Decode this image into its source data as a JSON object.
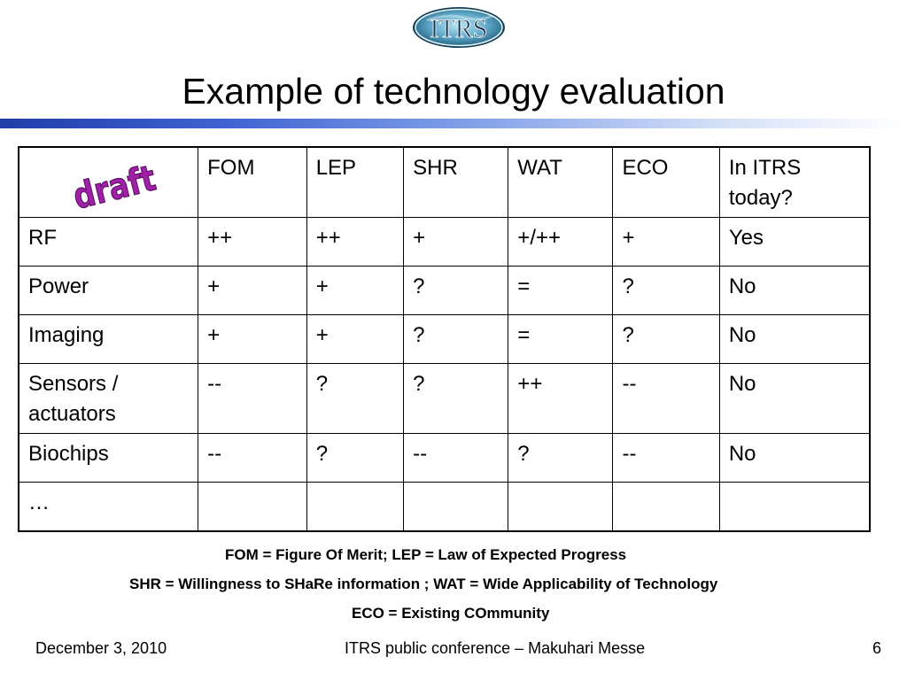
{
  "logo": {
    "text": "ITRS",
    "icon": "itrs-globe-logo-icon"
  },
  "slide": {
    "title": "Example of technology evaluation"
  },
  "stamp": {
    "text": "draft",
    "color": "#9b1fa0"
  },
  "table": {
    "columns": [
      "FOM",
      "LEP",
      "SHR",
      "WAT",
      "ECO"
    ],
    "itrs_header": [
      "In ITRS",
      "today?"
    ],
    "rows": [
      {
        "label": [
          "RF"
        ],
        "cells": [
          "++",
          "++",
          "+",
          "+/++",
          "+",
          "Yes"
        ]
      },
      {
        "label": [
          "Power"
        ],
        "cells": [
          "+",
          "+",
          "?",
          "=",
          "?",
          "No"
        ]
      },
      {
        "label": [
          "Imaging"
        ],
        "cells": [
          "+",
          "+",
          "?",
          "=",
          "?",
          "No"
        ]
      },
      {
        "label": [
          "Sensors /",
          "actuators"
        ],
        "cells": [
          "--",
          "?",
          "?",
          "++",
          "--",
          "No"
        ]
      },
      {
        "label": [
          "Biochips"
        ],
        "cells": [
          "--",
          "?",
          "--",
          "?",
          "--",
          "No"
        ]
      },
      {
        "label": [
          "…"
        ],
        "cells": [
          "",
          "",
          "",
          "",
          "",
          ""
        ]
      }
    ]
  },
  "footnotes": [
    "FOM = Figure Of Merit; LEP = Law of Expected Progress",
    "SHR = Willingness to SHaRe information ; WAT = Wide Applicability of Technology",
    "ECO = Existing COmmunity"
  ],
  "footer": {
    "date": "December 3, 2010",
    "conference": "ITRS public conference – Makuhari Messe",
    "page_number": "6"
  }
}
